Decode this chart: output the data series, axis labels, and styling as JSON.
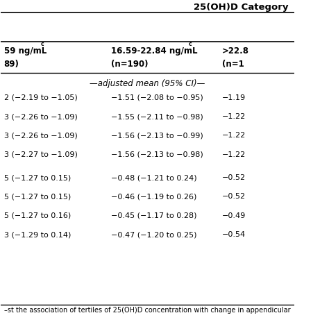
{
  "title": "25(OH)D Category",
  "col1_h1": "59 ng/mL",
  "col1_h1_super": "c",
  "col1_h2": "89)",
  "col2_h1": "16.59-22.84 ng/mL",
  "col2_h1_super": "c",
  "col2_h2": "(n=190)",
  "col3_h1": ">22.8",
  "col3_h2": "(n=1",
  "adj_mean_label": "—adjusted mean (95% CI)—",
  "rows_col1": [
    "2 (−2.19 to −1.05)",
    "3 (−2.26 to −1.09)",
    "3 (−2.26 to −1.09)",
    "3 (−2.27 to −1.09)"
  ],
  "rows_col2": [
    "−1.51 (−2.08 to −0.95)",
    "−1.55 (−2.11 to −0.98)",
    "−1.56 (−2.13 to −0.99)",
    "−1.56 (−2.13 to −0.98)"
  ],
  "rows_col3": [
    "−1.19",
    "−1.22",
    "−1.22",
    "−1.22"
  ],
  "rows2_col1": [
    "5 (−1.27 to 0.15)",
    "5 (−1.27 to 0.15)",
    "5 (−1.27 to 0.16)",
    "3 (−1.29 to 0.14)"
  ],
  "rows2_col2": [
    "−0.48 (−1.21 to 0.24)",
    "−0.46 (−1.19 to 0.26)",
    "−0.45 (−1.17 to 0.28)",
    "−0.47 (−1.20 to 0.25)"
  ],
  "rows2_col3": [
    "−0.52",
    "−0.52",
    "−0.49",
    "−0.54"
  ],
  "footnote": "–st the association of tertiles of 25(OH)D concentration with change in appendicular",
  "bg_color": "#ffffff",
  "text_color": "#000000",
  "line_color": "#000000",
  "font_size": 8.0,
  "header_font_size": 8.5
}
